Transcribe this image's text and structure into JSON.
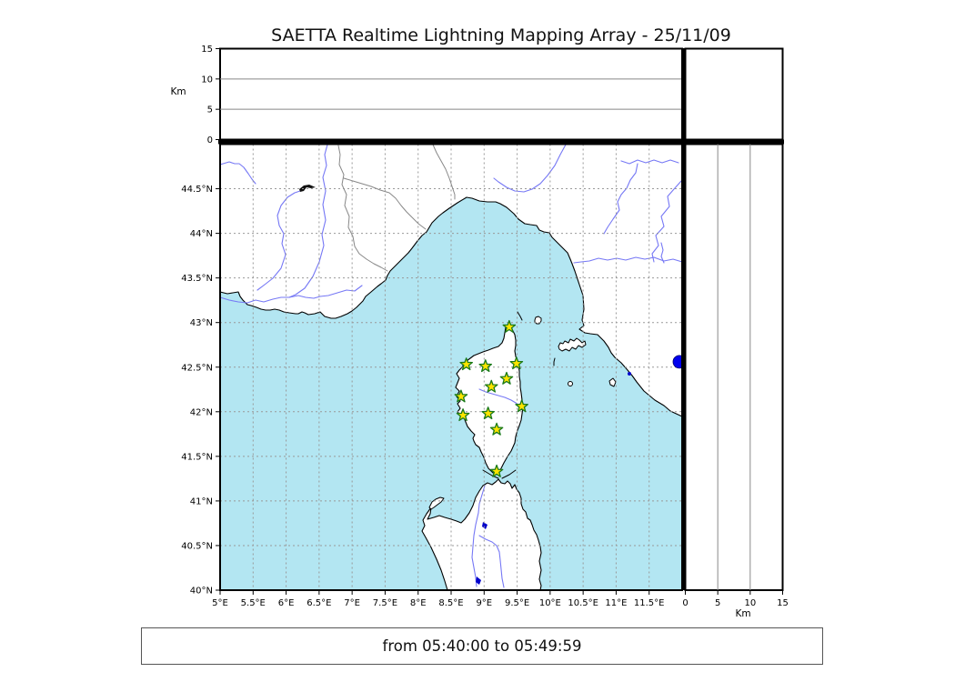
{
  "title": "SAETTA Realtime Lightning Mapping Array - 25/11/09",
  "footer": {
    "text": "from 05:40:00 to 05:49:59"
  },
  "colors": {
    "sea": "#b3e6f2",
    "land": "#ffffff",
    "coast": "#000000",
    "grid": "#999999",
    "panel_grid": "#888888",
    "river": "#7678f5",
    "country_border": "#888888",
    "station_fill": "#ffe400",
    "station_edge": "#1a7a1a",
    "source_dot": "#0000ee",
    "lake": "#0000cc"
  },
  "axes": {
    "lat_ticks": [
      {
        "value": 40,
        "label": "40°N"
      },
      {
        "value": 40.5,
        "label": "40.5°N"
      },
      {
        "value": 41,
        "label": "41°N"
      },
      {
        "value": 41.5,
        "label": "41.5°N"
      },
      {
        "value": 42,
        "label": "42°N"
      },
      {
        "value": 42.5,
        "label": "42.5°N"
      },
      {
        "value": 43,
        "label": "43°N"
      },
      {
        "value": 43.5,
        "label": "43.5°N"
      },
      {
        "value": 44,
        "label": "44°N"
      },
      {
        "value": 44.5,
        "label": "44.5°N"
      }
    ],
    "lon_ticks": [
      {
        "value": 5,
        "label": "5°E"
      },
      {
        "value": 5.5,
        "label": "5.5°E"
      },
      {
        "value": 6,
        "label": "6°E"
      },
      {
        "value": 6.5,
        "label": "6.5°E"
      },
      {
        "value": 7,
        "label": "7°E"
      },
      {
        "value": 7.5,
        "label": "7.5°E"
      },
      {
        "value": 8,
        "label": "8°E"
      },
      {
        "value": 8.5,
        "label": "8.5°E"
      },
      {
        "value": 9,
        "label": "9°E"
      },
      {
        "value": 9.5,
        "label": "9.5°E"
      },
      {
        "value": 10,
        "label": "10°E"
      },
      {
        "value": 10.5,
        "label": "10.5°E"
      },
      {
        "value": 11,
        "label": "11°E"
      },
      {
        "value": 11.5,
        "label": "11.5°E"
      }
    ],
    "alt_ticks": [
      {
        "value": 0,
        "label": "0"
      },
      {
        "value": 5,
        "label": "5"
      },
      {
        "value": 10,
        "label": "10"
      },
      {
        "value": 15,
        "label": "15"
      }
    ],
    "alt_grid_values": [
      5,
      10
    ],
    "alt_axis_label": "Km"
  },
  "chart_data": {
    "type": "scatter",
    "title": "SAETTA Realtime Lightning Mapping Array - 25/11/09",
    "time_range": "from 05:40:00 to 05:49:59",
    "map_extent": {
      "lon_min": 5,
      "lon_max": 12,
      "lat_min": 40,
      "lat_max": 45
    },
    "alt_extent_km": [
      0,
      15
    ],
    "stations": [
      {
        "lon": 9.38,
        "lat": 42.95
      },
      {
        "lon": 8.73,
        "lat": 42.53
      },
      {
        "lon": 9.02,
        "lat": 42.51
      },
      {
        "lon": 9.49,
        "lat": 42.54
      },
      {
        "lon": 9.34,
        "lat": 42.37
      },
      {
        "lon": 9.11,
        "lat": 42.28
      },
      {
        "lon": 8.65,
        "lat": 42.17
      },
      {
        "lon": 9.57,
        "lat": 42.06
      },
      {
        "lon": 8.68,
        "lat": 41.96
      },
      {
        "lon": 9.06,
        "lat": 41.98
      },
      {
        "lon": 9.19,
        "lat": 41.8
      },
      {
        "lon": 9.19,
        "lat": 41.33
      }
    ],
    "sources": [
      {
        "lon": 11.96,
        "lat": 42.56,
        "alt_km": 0
      }
    ]
  }
}
